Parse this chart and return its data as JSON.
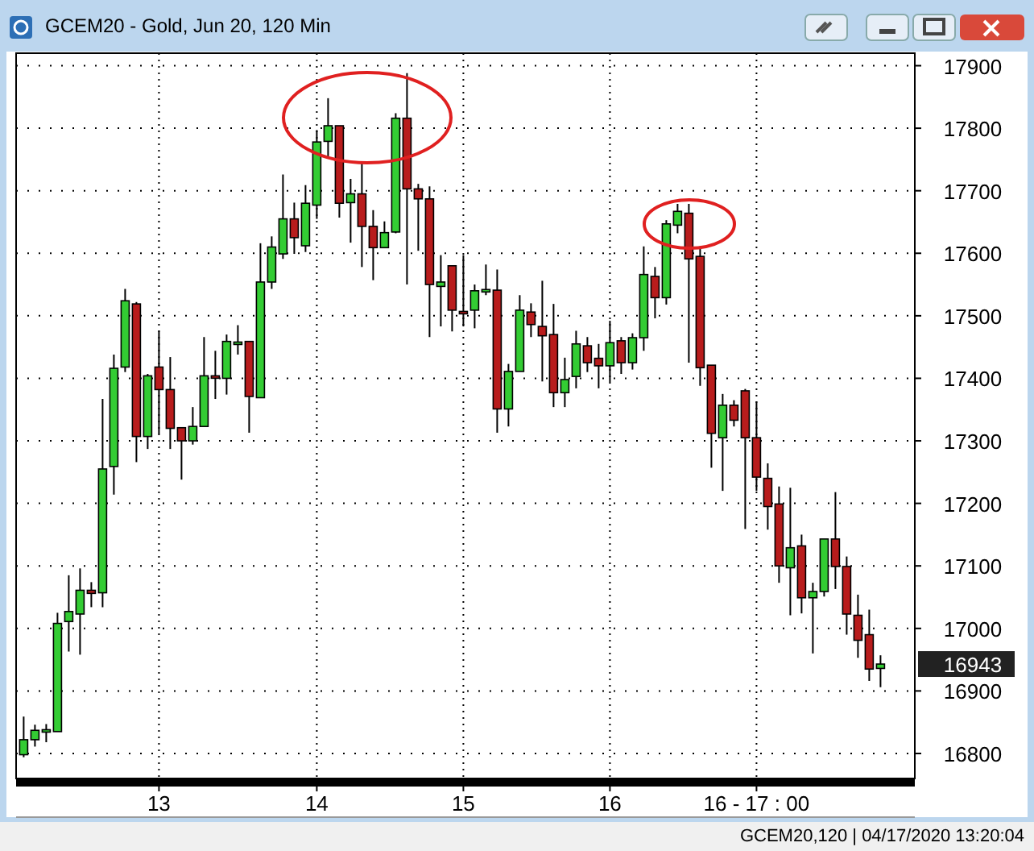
{
  "chart_data": {
    "type": "candlestick",
    "title": "GCEM20 - Gold, Jun 20, 120 Min",
    "annotations": [
      "GCEM20,120 | 04/17/2020 13:20:04",
      "16943"
    ],
    "categories": [
      null,
      null,
      null,
      null,
      null,
      null,
      null,
      null,
      null,
      null,
      null,
      null,
      "13",
      null,
      null,
      null,
      null,
      null,
      null,
      null,
      null,
      null,
      null,
      null,
      null,
      null,
      "14",
      null,
      null,
      null,
      null,
      null,
      null,
      null,
      null,
      null,
      null,
      null,
      null,
      "15",
      null,
      null,
      null,
      null,
      null,
      null,
      null,
      null,
      null,
      null,
      null,
      null,
      "16",
      null,
      null,
      null,
      null,
      null,
      null,
      null,
      null,
      null,
      null,
      null,
      null,
      "16 - 17 : 00",
      null,
      null,
      null,
      null,
      null,
      null,
      null,
      null,
      null,
      null,
      null
    ],
    "ohlc": [
      [
        16798,
        16859,
        16794,
        16822
      ],
      [
        16822,
        16846,
        16811,
        16837
      ],
      [
        16837,
        16847,
        16818,
        16838
      ],
      [
        16835,
        17025,
        16835,
        17008
      ],
      [
        17011,
        17085,
        16963,
        17027
      ],
      [
        17023,
        17096,
        16958,
        17061
      ],
      [
        17061,
        17074,
        17034,
        17056
      ],
      [
        17057,
        17367,
        17034,
        17255
      ],
      [
        17259,
        17438,
        17214,
        17416
      ],
      [
        17418,
        17543,
        17410,
        17524
      ],
      [
        17519,
        17522,
        17266,
        17307
      ],
      [
        17307,
        17407,
        17287,
        17404
      ],
      [
        17418,
        17476,
        17311,
        17382
      ],
      [
        17382,
        17434,
        17287,
        17320
      ],
      [
        17321,
        17321,
        17238,
        17300
      ],
      [
        17300,
        17354,
        17294,
        17323
      ],
      [
        17323,
        17466,
        17323,
        17404
      ],
      [
        17404,
        17444,
        17367,
        17402
      ],
      [
        17400,
        17470,
        17374,
        17459
      ],
      [
        17456,
        17485,
        17438,
        17458
      ],
      [
        17459,
        17459,
        17313,
        17371
      ],
      [
        17369,
        17616,
        17369,
        17554
      ],
      [
        17554,
        17627,
        17543,
        17610
      ],
      [
        17599,
        17726,
        17591,
        17655
      ],
      [
        17655,
        17681,
        17599,
        17625
      ],
      [
        17612,
        17709,
        17602,
        17680
      ],
      [
        17677,
        17797,
        17655,
        17778
      ],
      [
        17779,
        17848,
        17754,
        17804
      ],
      [
        17804,
        17804,
        17657,
        17680
      ],
      [
        17681,
        17719,
        17617,
        17695
      ],
      [
        17695,
        17747,
        17578,
        17643
      ],
      [
        17643,
        17669,
        17557,
        17609
      ],
      [
        17609,
        17651,
        17609,
        17633
      ],
      [
        17634,
        17824,
        17632,
        17816
      ],
      [
        17816,
        17888,
        17550,
        17703
      ],
      [
        17703,
        17711,
        17604,
        17687
      ],
      [
        17687,
        17707,
        17466,
        17550
      ],
      [
        17547,
        17597,
        17483,
        17554
      ],
      [
        17580,
        17580,
        17475,
        17509
      ],
      [
        17507,
        17597,
        17483,
        17505
      ],
      [
        17509,
        17550,
        17480,
        17540
      ],
      [
        17540,
        17582,
        17533,
        17542
      ],
      [
        17541,
        17574,
        17313,
        17351
      ],
      [
        17351,
        17423,
        17323,
        17411
      ],
      [
        17411,
        17533,
        17411,
        17509
      ],
      [
        17506,
        17520,
        17466,
        17486
      ],
      [
        17483,
        17556,
        17395,
        17468
      ],
      [
        17470,
        17519,
        17354,
        17377
      ],
      [
        17377,
        17433,
        17354,
        17398
      ],
      [
        17403,
        17476,
        17384,
        17455
      ],
      [
        17452,
        17466,
        17410,
        17425
      ],
      [
        17432,
        17455,
        17384,
        17420
      ],
      [
        17420,
        17492,
        17394,
        17457
      ],
      [
        17460,
        17466,
        17407,
        17425
      ],
      [
        17425,
        17472,
        17414,
        17465
      ],
      [
        17465,
        17611,
        17444,
        17566
      ],
      [
        17563,
        17578,
        17496,
        17529
      ],
      [
        17529,
        17653,
        17518,
        17647
      ],
      [
        17645,
        17679,
        17632,
        17667
      ],
      [
        17664,
        17679,
        17425,
        17591
      ],
      [
        17595,
        17611,
        17388,
        17417
      ],
      [
        17421,
        17421,
        17257,
        17312
      ],
      [
        17305,
        17375,
        17220,
        17357
      ],
      [
        17357,
        17365,
        17323,
        17333
      ],
      [
        17380,
        17383,
        17159,
        17305
      ],
      [
        17305,
        17363,
        17220,
        17242
      ],
      [
        17240,
        17264,
        17158,
        17195
      ],
      [
        17199,
        17227,
        17073,
        17100
      ],
      [
        17097,
        17225,
        17021,
        17129
      ],
      [
        17132,
        17150,
        17024,
        17049
      ],
      [
        17049,
        17073,
        16960,
        17059
      ],
      [
        17059,
        17143,
        17051,
        17143
      ],
      [
        17143,
        17218,
        17063,
        17099
      ],
      [
        17099,
        17115,
        16990,
        17023
      ],
      [
        17021,
        17054,
        16953,
        16981
      ],
      [
        16990,
        17030,
        16916,
        16935
      ],
      [
        16936,
        16957,
        16906,
        16943
      ]
    ],
    "colors": [
      "#33cc33",
      "#33cc33",
      "#33cc33",
      "#33cc33",
      "#33cc33",
      "#33cc33",
      "#b81c1c",
      "#33cc33",
      "#33cc33",
      "#33cc33",
      "#b81c1c",
      "#33cc33",
      "#b81c1c",
      "#b81c1c",
      "#b81c1c",
      "#33cc33",
      "#33cc33",
      "#b81c1c",
      "#33cc33",
      "#33cc33",
      "#b81c1c",
      "#33cc33",
      "#33cc33",
      "#33cc33",
      "#b81c1c",
      "#33cc33",
      "#33cc33",
      "#33cc33",
      "#b81c1c",
      "#33cc33",
      "#b81c1c",
      "#b81c1c",
      "#33cc33",
      "#33cc33",
      "#b81c1c",
      "#b81c1c",
      "#b81c1c",
      "#33cc33",
      "#b81c1c",
      "#b81c1c",
      "#33cc33",
      "#33cc33",
      "#b81c1c",
      "#33cc33",
      "#33cc33",
      "#b81c1c",
      "#b81c1c",
      "#b81c1c",
      "#33cc33",
      "#33cc33",
      "#b81c1c",
      "#b81c1c",
      "#33cc33",
      "#b81c1c",
      "#33cc33",
      "#33cc33",
      "#b81c1c",
      "#33cc33",
      "#33cc33",
      "#b81c1c",
      "#b81c1c",
      "#b81c1c",
      "#33cc33",
      "#b81c1c",
      "#b81c1c",
      "#b81c1c",
      "#b81c1c",
      "#b81c1c",
      "#33cc33",
      "#b81c1c",
      "#33cc33",
      "#33cc33",
      "#b81c1c",
      "#b81c1c",
      "#b81c1c",
      "#b81c1c",
      "#33cc33"
    ],
    "ylim": [
      16760,
      17920
    ],
    "yticks": [
      16800,
      16900,
      17000,
      17100,
      17200,
      17300,
      17400,
      17500,
      17600,
      17700,
      17800,
      17900
    ],
    "grid": true
  }
}
